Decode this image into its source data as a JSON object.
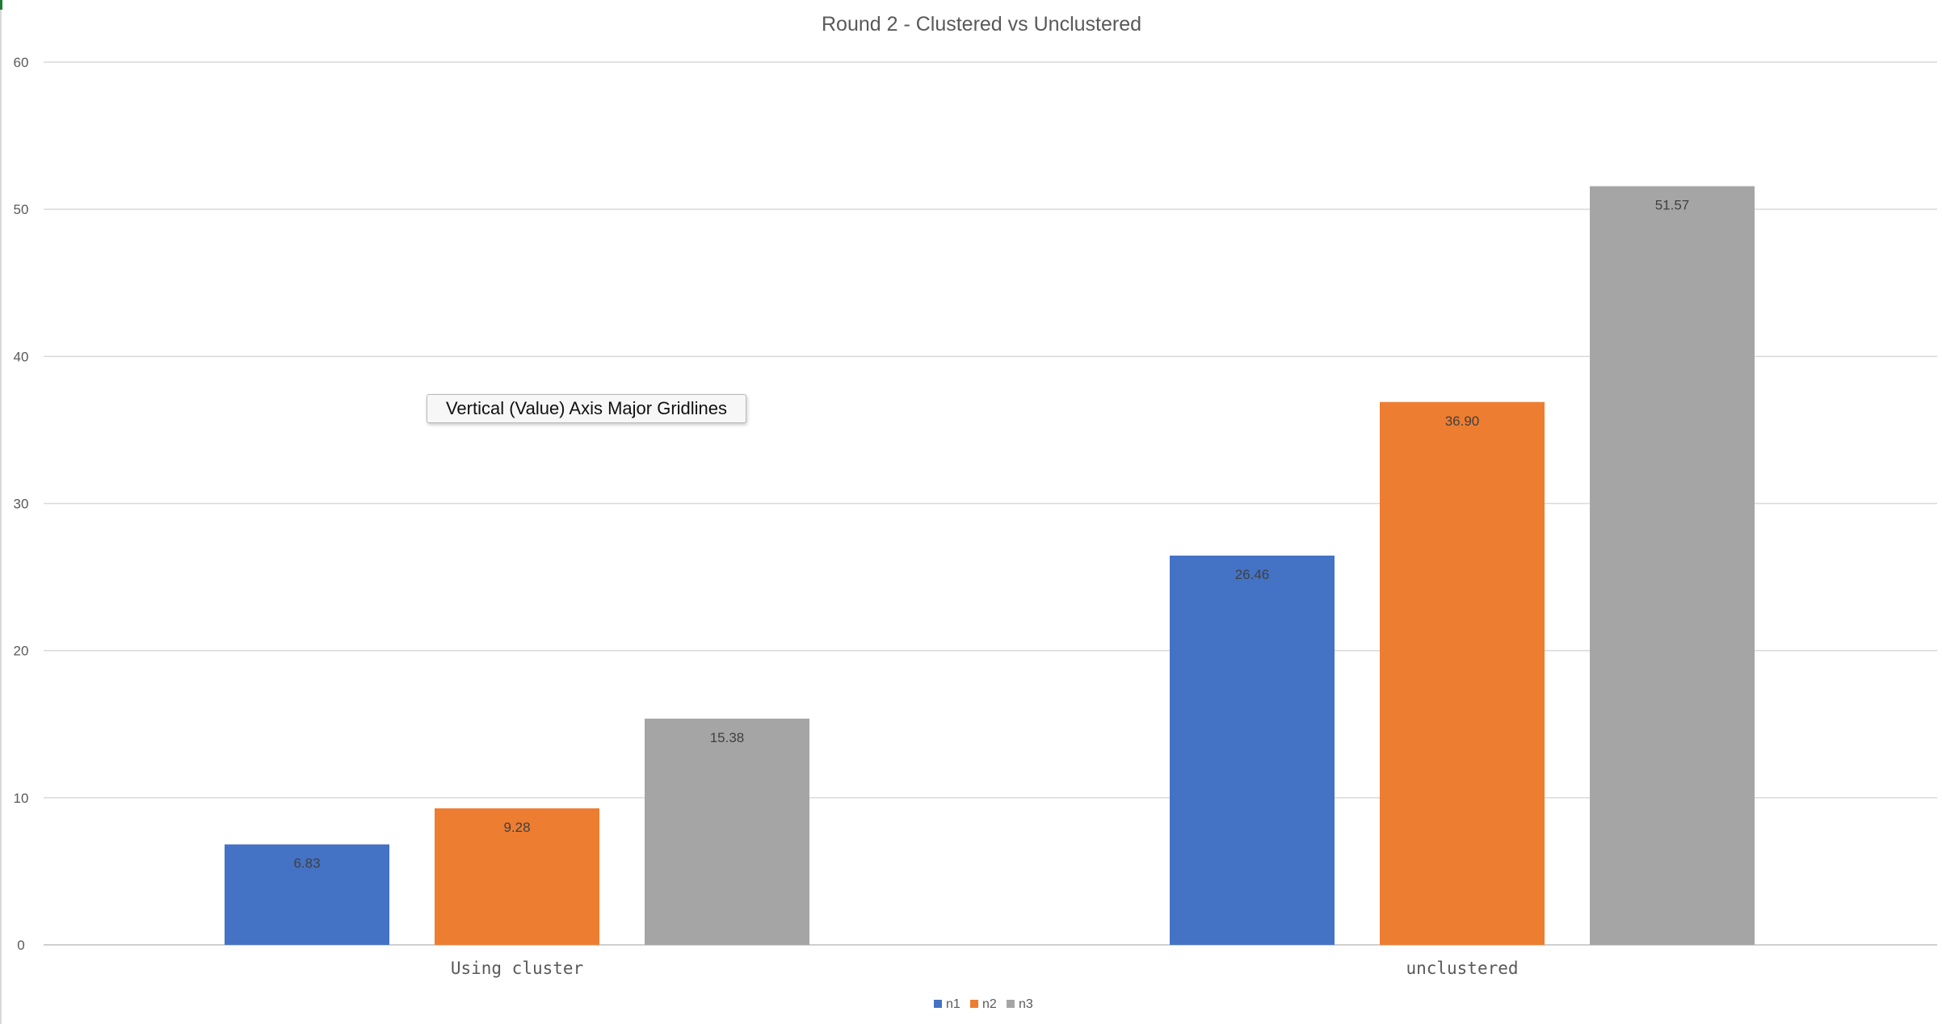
{
  "tooltip": {
    "text": "Vertical (Value) Axis Major Gridlines"
  },
  "colors": {
    "n1": "#4472c4",
    "n2": "#ed7d31",
    "n3": "#a5a5a5",
    "gridline": "#d9d9d9",
    "text": "#595959"
  },
  "chart_data": {
    "type": "bar",
    "title": "Round 2 - Clustered vs Unclustered",
    "xlabel": "",
    "ylabel": "",
    "categories": [
      "Using cluster",
      "unclustered"
    ],
    "series": [
      {
        "name": "n1",
        "values": [
          6.83,
          26.46
        ],
        "labels": [
          "6.83",
          "26.46"
        ],
        "color": "#4472c4"
      },
      {
        "name": "n2",
        "values": [
          9.28,
          36.9
        ],
        "labels": [
          "9.28",
          "36.90"
        ],
        "color": "#ed7d31"
      },
      {
        "name": "n3",
        "values": [
          15.38,
          51.57
        ],
        "labels": [
          "15.38",
          "51.57"
        ],
        "color": "#a5a5a5"
      }
    ],
    "ylim": [
      0,
      60
    ],
    "yticks": [
      0,
      10,
      20,
      30,
      40,
      50,
      60
    ],
    "grid": true,
    "legend": "bottom",
    "data_labels": "inside-end"
  }
}
